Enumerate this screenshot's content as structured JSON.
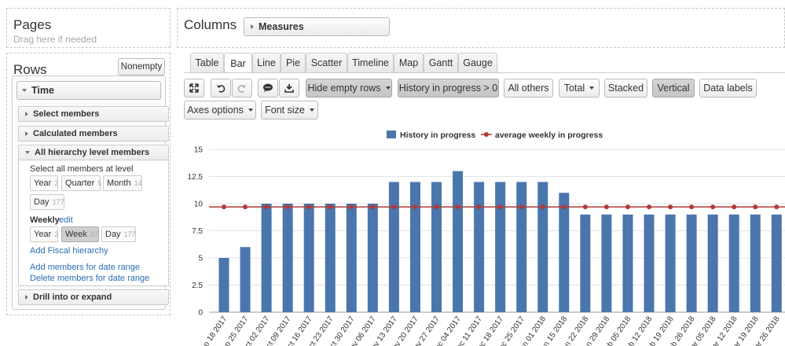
{
  "pages": {
    "title": "Pages",
    "hint": "Drag here if needed"
  },
  "columns": {
    "title": "Columns",
    "chip": "Measures"
  },
  "rows": {
    "title": "Rows",
    "nonempty": "Nonempty",
    "dimension": "Time",
    "sections": {
      "select": "Select members",
      "calculated": "Calculated members",
      "hierarchy": "All hierarchy level members",
      "drill": "Drill into or expand"
    },
    "select_all_label": "Select all members at level",
    "levels1": [
      {
        "label": "Year",
        "count": "2"
      },
      {
        "label": "Quarter",
        "count": "5"
      },
      {
        "label": "Month",
        "count": "14"
      },
      {
        "label": "Day",
        "count": "177"
      }
    ],
    "weekly_label": "Weekly",
    "edit_label": "edit",
    "levels2": [
      {
        "label": "Year",
        "count": "2"
      },
      {
        "label": "Week",
        "count": "37"
      },
      {
        "label": "Day",
        "count": "177"
      }
    ],
    "links": [
      "Add Fiscal hierarchy",
      "Add members for date range",
      "Delete members for date range"
    ]
  },
  "tabs": [
    "Table",
    "Bar",
    "Line",
    "Pie",
    "Scatter",
    "Timeline",
    "Map",
    "Gantt",
    "Gauge"
  ],
  "toolbar": {
    "hide_empty": "Hide empty rows",
    "history_filter": "History in progress > 0",
    "all_others": "All others",
    "total": "Total",
    "stacked": "Stacked",
    "vertical": "Vertical",
    "data_labels": "Data labels",
    "axes_options": "Axes options",
    "font_size": "Font size"
  },
  "icons": {
    "fullscreen": "fullscreen-icon",
    "undo": "undo-icon",
    "redo": "redo-icon",
    "comment": "comment-icon",
    "download": "download-icon"
  },
  "colors": {
    "bar": "#4a76ad",
    "line": "#b03a3a"
  },
  "chart_data": {
    "type": "bar",
    "legend": [
      "History in progress",
      "average weekly in progress"
    ],
    "legend_position": "top",
    "ylim": [
      0,
      15
    ],
    "yticks": [
      "0",
      "2.5",
      "5",
      "7.5",
      "10",
      "12.5",
      "15"
    ],
    "categories": [
      "Sep 18 2017",
      "Sep 25 2017",
      "Oct 02 2017",
      "Oct 09 2017",
      "Oct 16 2017",
      "Oct 23 2017",
      "Oct 30 2017",
      "Nov 06 2017",
      "Nov 13 2017",
      "Nov 20 2017",
      "Nov 27 2017",
      "Dec 04 2017",
      "Dec 11 2017",
      "Dec 18 2017",
      "Dec 25 2017",
      "Jan 01 2018",
      "Jan 15 2018",
      "Jan 22 2018",
      "Jan 29 2018",
      "Feb 05 2018",
      "Feb 12 2018",
      "Feb 19 2018",
      "Feb 26 2018",
      "Mar 05 2018",
      "Mar 12 2018",
      "Mar 19 2018",
      "Mar 26 2018"
    ],
    "series": [
      {
        "name": "History in progress",
        "type": "bar",
        "values": [
          5,
          6,
          10,
          10,
          10,
          10,
          10,
          10,
          12,
          12,
          12,
          13,
          12,
          12,
          12,
          12,
          11,
          9,
          9,
          9,
          9,
          9,
          9,
          9,
          9,
          9,
          9
        ]
      },
      {
        "name": "average weekly in progress",
        "type": "line",
        "values": [
          9.7,
          9.7,
          9.7,
          9.7,
          9.7,
          9.7,
          9.7,
          9.7,
          9.7,
          9.7,
          9.7,
          9.7,
          9.7,
          9.7,
          9.7,
          9.7,
          9.7,
          9.7,
          9.7,
          9.7,
          9.7,
          9.7,
          9.7,
          9.7,
          9.7,
          9.7,
          9.7
        ]
      }
    ],
    "grid": true
  }
}
